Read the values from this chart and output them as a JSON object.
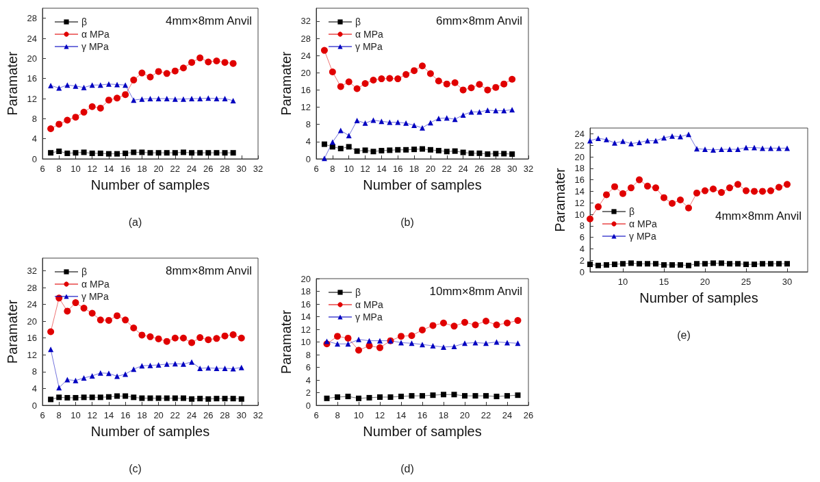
{
  "chart_data": [
    {
      "type": "line",
      "xlabel": "Number of samples",
      "ylabel": "Paramater",
      "annotations": [
        "4mm×8mm Anvil",
        "(a)"
      ],
      "xlim": [
        6,
        32
      ],
      "xticks": [
        6,
        8,
        10,
        12,
        14,
        16,
        18,
        20,
        22,
        24,
        26,
        28,
        30,
        32
      ],
      "ylim": [
        0,
        30
      ],
      "yticks": [
        0,
        4,
        8,
        12,
        16,
        20,
        24,
        28
      ],
      "grid": false,
      "legend": "top left",
      "x": [
        7,
        8,
        9,
        10,
        11,
        12,
        13,
        14,
        15,
        16,
        17,
        18,
        19,
        20,
        21,
        22,
        23,
        24,
        25,
        26,
        27,
        28,
        29
      ],
      "series": [
        {
          "name": "β",
          "color": "#000000",
          "marker": "square",
          "values": [
            1.2,
            1.5,
            1.1,
            1.2,
            1.3,
            1.1,
            1.1,
            1.0,
            1.0,
            1.1,
            1.3,
            1.3,
            1.2,
            1.2,
            1.2,
            1.2,
            1.3,
            1.2,
            1.2,
            1.2,
            1.2,
            1.2,
            1.2
          ]
        },
        {
          "name": "α MPa",
          "color": "#e00000",
          "marker": "circle",
          "values": [
            6.0,
            6.9,
            7.7,
            8.3,
            9.3,
            10.4,
            10.1,
            11.7,
            12.1,
            12.8,
            15.7,
            17.1,
            16.3,
            17.4,
            17.0,
            17.5,
            18.1,
            19.2,
            20.1,
            19.3,
            19.5,
            19.2,
            19.0
          ]
        },
        {
          "name": "γ MPa",
          "color": "#0000c0",
          "marker": "triangle",
          "values": [
            14.6,
            14.1,
            14.7,
            14.5,
            14.2,
            14.7,
            14.7,
            14.9,
            14.8,
            14.7,
            11.7,
            11.9,
            12.0,
            12.0,
            12.0,
            11.9,
            11.9,
            12.0,
            12.0,
            12.1,
            12.0,
            12.0,
            11.6
          ]
        }
      ]
    },
    {
      "type": "line",
      "xlabel": "Number of samples",
      "ylabel": "Paramater",
      "annotations": [
        "6mm×8mm Anvil",
        "(b)"
      ],
      "xlim": [
        6,
        32
      ],
      "xticks": [
        6,
        8,
        10,
        12,
        14,
        16,
        18,
        20,
        22,
        24,
        26,
        28,
        30,
        32
      ],
      "ylim": [
        0,
        35
      ],
      "yticks": [
        0,
        4,
        8,
        12,
        16,
        20,
        24,
        28,
        32
      ],
      "grid": false,
      "legend": "top left",
      "x": [
        7,
        8,
        9,
        10,
        11,
        12,
        13,
        14,
        15,
        16,
        17,
        18,
        19,
        20,
        21,
        22,
        23,
        24,
        25,
        26,
        27,
        28,
        29,
        30
      ],
      "series": [
        {
          "name": "β",
          "color": "#000000",
          "marker": "square",
          "values": [
            3.4,
            2.8,
            2.4,
            2.8,
            1.8,
            2.0,
            1.7,
            1.9,
            2.0,
            2.1,
            2.1,
            2.2,
            2.3,
            2.1,
            1.9,
            1.7,
            1.8,
            1.5,
            1.3,
            1.3,
            1.1,
            1.2,
            1.2,
            1.1
          ]
        },
        {
          "name": "α MPa",
          "color": "#e00000",
          "marker": "circle",
          "values": [
            25.2,
            20.2,
            16.8,
            17.9,
            16.3,
            17.5,
            18.3,
            18.6,
            18.7,
            18.6,
            19.6,
            20.5,
            21.6,
            19.8,
            18.1,
            17.4,
            17.7,
            16.0,
            16.5,
            17.3,
            16.0,
            16.6,
            17.4,
            18.5
          ]
        },
        {
          "name": "γ MPa",
          "color": "#0000c0",
          "marker": "triangle",
          "values": [
            0.1,
            3.9,
            6.6,
            5.4,
            8.9,
            8.3,
            9.0,
            8.7,
            8.5,
            8.5,
            8.3,
            7.8,
            7.2,
            8.4,
            9.4,
            9.5,
            9.2,
            10.2,
            10.9,
            10.9,
            11.3,
            11.2,
            11.2,
            11.4
          ]
        }
      ]
    },
    {
      "type": "line",
      "xlabel": "Number of samples",
      "ylabel": "Paramater",
      "annotations": [
        "8mm×8mm Anvil",
        "(c)"
      ],
      "xlim": [
        6,
        32
      ],
      "xticks": [
        6,
        8,
        10,
        12,
        14,
        16,
        18,
        20,
        22,
        24,
        26,
        28,
        30,
        32
      ],
      "ylim": [
        0,
        35
      ],
      "yticks": [
        0,
        4,
        8,
        12,
        16,
        20,
        24,
        28,
        32
      ],
      "grid": false,
      "legend": "top left",
      "x": [
        7,
        8,
        9,
        10,
        11,
        12,
        13,
        14,
        15,
        16,
        17,
        18,
        19,
        20,
        21,
        22,
        23,
        24,
        25,
        26,
        27,
        28,
        29,
        30
      ],
      "series": [
        {
          "name": "β",
          "color": "#000000",
          "marker": "square",
          "values": [
            1.4,
            1.9,
            1.8,
            1.8,
            1.9,
            1.9,
            1.9,
            2.0,
            2.2,
            2.2,
            1.9,
            1.7,
            1.7,
            1.7,
            1.7,
            1.7,
            1.7,
            1.5,
            1.6,
            1.5,
            1.6,
            1.6,
            1.6,
            1.5
          ]
        },
        {
          "name": "α MPa",
          "color": "#e00000",
          "marker": "circle",
          "values": [
            17.5,
            25.5,
            22.4,
            24.4,
            23.1,
            21.9,
            20.3,
            20.2,
            21.3,
            20.3,
            18.4,
            16.7,
            16.3,
            15.8,
            15.2,
            16.0,
            16.0,
            14.9,
            16.1,
            15.6,
            15.9,
            16.5,
            16.8,
            16.0
          ]
        },
        {
          "name": "γ MPa",
          "color": "#0000c0",
          "marker": "triangle",
          "values": [
            13.3,
            4.2,
            6.1,
            5.9,
            6.5,
            7.0,
            7.7,
            7.6,
            6.9,
            7.4,
            8.6,
            9.4,
            9.5,
            9.6,
            9.8,
            9.9,
            9.8,
            10.3,
            8.8,
            8.9,
            8.8,
            8.8,
            8.7,
            9.0
          ]
        }
      ]
    },
    {
      "type": "line",
      "xlabel": "Number of samples",
      "ylabel": "Paramater",
      "annotations": [
        "10mm×8mm Anvil",
        "(d)"
      ],
      "xlim": [
        6,
        26
      ],
      "xticks": [
        6,
        8,
        10,
        12,
        14,
        16,
        18,
        20,
        22,
        24,
        26
      ],
      "ylim": [
        0,
        20
      ],
      "yticks": [
        0,
        2,
        4,
        6,
        8,
        10,
        12,
        14,
        16,
        18,
        20
      ],
      "grid": false,
      "legend": "top left",
      "x": [
        7,
        8,
        9,
        10,
        11,
        12,
        13,
        14,
        15,
        16,
        17,
        18,
        19,
        20,
        21,
        22,
        23,
        24,
        25
      ],
      "series": [
        {
          "name": "β",
          "color": "#000000",
          "marker": "square",
          "values": [
            1.1,
            1.3,
            1.4,
            1.1,
            1.2,
            1.3,
            1.3,
            1.4,
            1.5,
            1.5,
            1.6,
            1.7,
            1.7,
            1.5,
            1.5,
            1.5,
            1.4,
            1.5,
            1.6
          ]
        },
        {
          "name": "α MPa",
          "color": "#e00000",
          "marker": "circle",
          "values": [
            9.7,
            10.9,
            10.6,
            8.7,
            9.4,
            9.1,
            10.2,
            10.9,
            11.0,
            11.9,
            12.6,
            13.0,
            12.5,
            13.1,
            12.7,
            13.3,
            12.7,
            13.0,
            13.4
          ]
        },
        {
          "name": "γ MPa",
          "color": "#0000c0",
          "marker": "triangle",
          "values": [
            10.1,
            9.7,
            9.7,
            10.4,
            10.2,
            10.2,
            10.2,
            9.9,
            9.8,
            9.6,
            9.4,
            9.2,
            9.3,
            9.8,
            9.9,
            9.8,
            10.0,
            9.9,
            9.8
          ]
        }
      ]
    },
    {
      "type": "line",
      "xlabel": "Number of samples",
      "ylabel": "Paramater",
      "annotations": [
        "4mm×8mm Anvil",
        "(e)"
      ],
      "xlim": [
        6,
        32.5
      ],
      "xticks": [
        10,
        15,
        20,
        25,
        30
      ],
      "ylim": [
        0,
        25
      ],
      "yticks": [
        0,
        2,
        4,
        6,
        8,
        10,
        12,
        14,
        16,
        18,
        20,
        22,
        24
      ],
      "grid": false,
      "legend": "bottom left",
      "x": [
        6,
        7,
        8,
        9,
        10,
        11,
        12,
        13,
        14,
        15,
        16,
        17,
        18,
        19,
        20,
        21,
        22,
        23,
        24,
        25,
        26,
        27,
        28,
        29,
        30
      ],
      "series": [
        {
          "name": "β",
          "color": "#000000",
          "marker": "square",
          "values": [
            1.3,
            1.1,
            1.2,
            1.3,
            1.4,
            1.5,
            1.4,
            1.4,
            1.4,
            1.2,
            1.2,
            1.2,
            1.1,
            1.4,
            1.4,
            1.5,
            1.5,
            1.4,
            1.4,
            1.3,
            1.3,
            1.4,
            1.4,
            1.4,
            1.4
          ]
        },
        {
          "name": "α MPa",
          "color": "#e00000",
          "marker": "circle",
          "values": [
            9.2,
            11.3,
            13.4,
            14.8,
            13.6,
            14.6,
            16.0,
            14.9,
            14.6,
            12.9,
            11.9,
            12.5,
            11.1,
            13.7,
            14.1,
            14.4,
            13.8,
            14.6,
            15.2,
            14.1,
            14.0,
            14.0,
            14.1,
            14.7,
            15.2
          ]
        },
        {
          "name": "γ MPa",
          "color": "#0000c0",
          "marker": "triangle",
          "values": [
            22.8,
            23.2,
            23.0,
            22.4,
            22.7,
            22.3,
            22.5,
            22.8,
            22.8,
            23.3,
            23.6,
            23.5,
            23.9,
            21.4,
            21.3,
            21.2,
            21.3,
            21.3,
            21.3,
            21.6,
            21.6,
            21.5,
            21.5,
            21.5,
            21.5
          ]
        }
      ]
    }
  ]
}
